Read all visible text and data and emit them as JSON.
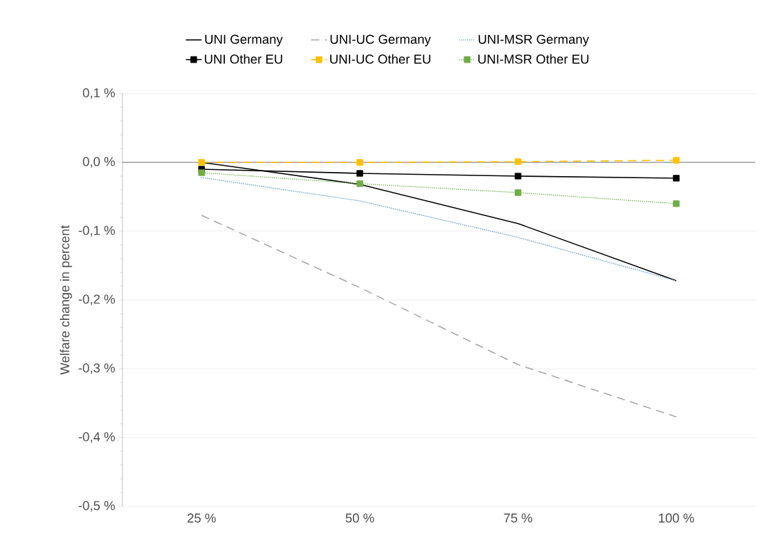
{
  "chart_data": {
    "type": "line",
    "ylabel": "Welfare change in percent",
    "categories": [
      "25 %",
      "50 %",
      "75 %",
      "100 %"
    ],
    "series": [
      {
        "name": "UNI Germany",
        "color": "#000000",
        "line_style": "solid",
        "marker": "none",
        "values": [
          0.0,
          -0.032,
          -0.089,
          -0.172
        ]
      },
      {
        "name": "UNI-UC Germany",
        "color": "#a6a6a6",
        "line_style": "dashed",
        "marker": "none",
        "values": [
          -0.077,
          -0.182,
          -0.294,
          -0.37
        ]
      },
      {
        "name": "UNI-MSR Germany",
        "color": "#5b9bd5",
        "line_style": "dotted",
        "marker": "none",
        "values": [
          -0.022,
          -0.056,
          -0.109,
          -0.172
        ]
      },
      {
        "name": "UNI Other EU",
        "color": "#000000",
        "line_style": "solid",
        "marker": "square",
        "values": [
          -0.01,
          -0.016,
          -0.02,
          -0.023
        ]
      },
      {
        "name": "UNI-UC Other EU",
        "color": "#ffc000",
        "line_style": "dashed",
        "marker": "square",
        "values": [
          0.0,
          0.0,
          0.001,
          0.003
        ]
      },
      {
        "name": "UNI-MSR Other EU",
        "color": "#70ad47",
        "line_style": "dotted",
        "marker": "square",
        "values": [
          -0.015,
          -0.031,
          -0.044,
          -0.06
        ]
      }
    ],
    "ylim": [
      -0.5,
      0.1
    ],
    "yticks": [
      {
        "value": -0.5,
        "label": "-0,5 %"
      },
      {
        "value": -0.4,
        "label": "-0,4 %"
      },
      {
        "value": -0.3,
        "label": "-0,3 %"
      },
      {
        "value": -0.2,
        "label": "-0,2 %"
      },
      {
        "value": -0.1,
        "label": "-0,1 %"
      },
      {
        "value": 0.0,
        "label": "0,0 %"
      },
      {
        "value": 0.1,
        "label": "0,1 %"
      }
    ],
    "grid": "y",
    "legend": "top"
  }
}
